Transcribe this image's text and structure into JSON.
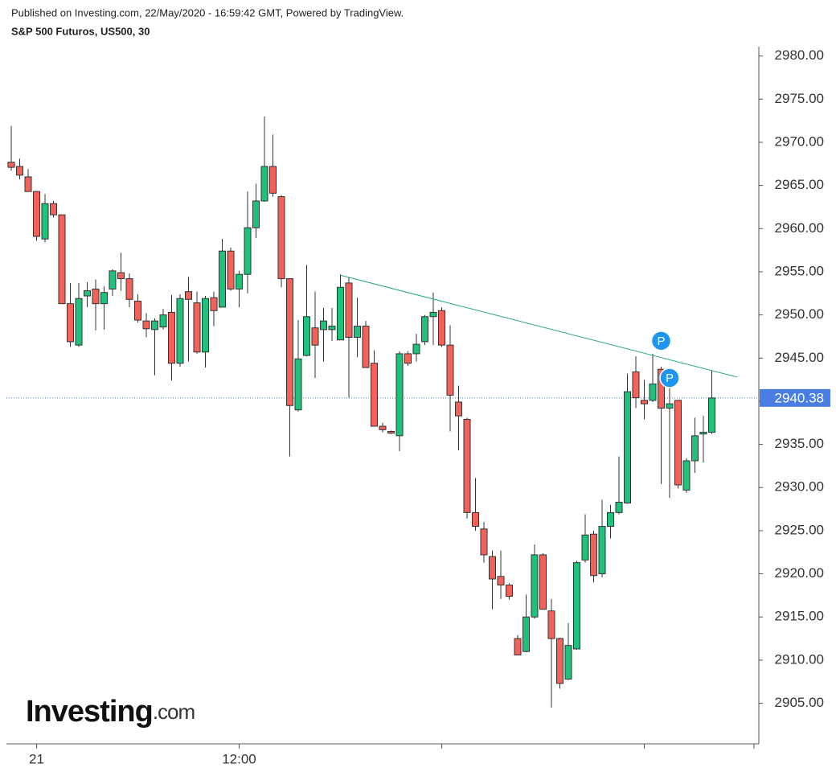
{
  "header": {
    "published": "Published on Investing.com, 22/May/2020 - 16:59:42 GMT, Powered by TradingView.",
    "symbol": "S&P 500 Futuros, US500, 30"
  },
  "logo": {
    "name": "Investing",
    "suffix": ".com"
  },
  "chart_data": {
    "type": "candlestick",
    "categories": [
      null,
      null,
      null,
      "21",
      null,
      null,
      null,
      null,
      null,
      null,
      null,
      null,
      null,
      null,
      null,
      null,
      null,
      null,
      null,
      null,
      null,
      null,
      null,
      null,
      null,
      null,
      null,
      "12:00",
      null,
      null,
      null,
      null,
      null,
      null,
      null,
      null,
      null,
      null,
      null,
      null,
      null,
      null,
      null,
      null,
      null,
      null,
      null,
      null,
      null,
      null,
      null,
      null,
      null,
      null,
      null,
      null,
      null,
      null,
      null,
      null,
      null,
      null,
      null,
      null,
      null,
      null,
      null,
      null,
      null,
      null,
      null,
      null,
      null,
      null,
      null,
      null,
      null,
      null,
      null,
      null,
      null,
      null,
      null,
      null
    ],
    "open": [
      2967.7,
      2967.2,
      2966.0,
      2964.3,
      2958.8,
      2962.9,
      2961.6,
      2951.3,
      2946.5,
      2952.2,
      2953.0,
      2951.3,
      2953.0,
      2954.9,
      2954.2,
      2951.6,
      2949.3,
      2948.3,
      2948.6,
      2950.3,
      2944.4,
      2952.7,
      2951.4,
      2945.7,
      2952.0,
      2950.9,
      2957.4,
      2953.0,
      2954.7,
      2960.1,
      2963.2,
      2967.2,
      2963.7,
      2954.2,
      2939.0,
      2945.3,
      2948.5,
      2948.3,
      2948.3,
      2947.1,
      2953.7,
      2947.4,
      2948.7,
      2944.4,
      2937.1,
      2936.5,
      2936.0,
      2945.5,
      2945.5,
      2946.9,
      2949.8,
      2950.5,
      2946.5,
      2939.9,
      2937.9,
      2927.1,
      2925.2,
      2922.0,
      2919.7,
      2918.7,
      2912.5,
      2911.0,
      2915.0,
      2922.2,
      2915.7,
      2912.5,
      2907.8,
      2911.3,
      2921.6,
      2924.6,
      2920.0,
      2925.5,
      2927.1,
      2928.2,
      2943.4,
      2940.1,
      2940.1,
      2943.7,
      2939.2,
      2940.1,
      2929.7,
      2933.1,
      2936.2,
      2936.4
    ],
    "high": [
      2971.9,
      2968.1,
      2966.9,
      2964.3,
      2964.0,
      2963.2,
      2961.6,
      2953.7,
      2953.7,
      2953.8,
      2954.1,
      2953.3,
      2955.3,
      2957.2,
      2954.8,
      2952.4,
      2950.2,
      2949.6,
      2950.7,
      2952.3,
      2952.4,
      2954.4,
      2952.7,
      2952.2,
      2952.7,
      2958.8,
      2957.8,
      2955.1,
      2964.3,
      2965.2,
      2973.0,
      2970.9,
      2963.9,
      2954.2,
      2949.4,
      2955.8,
      2952.7,
      2950.8,
      2950.8,
      2954.7,
      2954.4,
      2952.0,
      2949.3,
      2945.9,
      2937.5,
      2936.6,
      2945.8,
      2945.8,
      2947.8,
      2950.0,
      2952.6,
      2950.9,
      2948.8,
      2941.8,
      2938.1,
      2931.1,
      2926.0,
      2922.7,
      2922.7,
      2918.9,
      2912.9,
      2917.6,
      2923.4,
      2922.4,
      2917.1,
      2912.6,
      2914.3,
      2921.5,
      2926.9,
      2925.0,
      2928.6,
      2928.0,
      2933.6,
      2943.2,
      2945.2,
      2942.5,
      2945.5,
      2944.0,
      2941.8,
      2940.1,
      2933.4,
      2938.1,
      2938.3,
      2943.6
    ],
    "low": [
      2966.7,
      2965.7,
      2964.3,
      2958.6,
      2958.4,
      2961.3,
      2951.3,
      2946.3,
      2946.3,
      2950.9,
      2948.2,
      2948.3,
      2952.2,
      2952.8,
      2950.9,
      2949.1,
      2947.4,
      2943.0,
      2948.3,
      2942.4,
      2944.0,
      2944.6,
      2945.5,
      2943.9,
      2948.7,
      2950.9,
      2952.8,
      2950.9,
      2952.5,
      2958.9,
      2963.1,
      2963.7,
      2953.2,
      2933.6,
      2938.8,
      2945.2,
      2942.7,
      2944.6,
      2947.0,
      2947.1,
      2940.4,
      2945.1,
      2943.9,
      2937.1,
      2936.4,
      2936.2,
      2934.2,
      2944.1,
      2944.6,
      2946.5,
      2946.5,
      2946.3,
      2936.5,
      2934.3,
      2926.4,
      2925.0,
      2921.3,
      2915.9,
      2917.1,
      2917.0,
      2910.6,
      2910.9,
      2914.8,
      2915.9,
      2904.5,
      2906.7,
      2907.7,
      2911.2,
      2921.3,
      2919.0,
      2919.6,
      2924.1,
      2926.9,
      2928.1,
      2939.2,
      2937.9,
      2939.9,
      2930.4,
      2928.8,
      2929.9,
      2929.4,
      2931.7,
      2932.9,
      2936.2
    ],
    "close": [
      2967.1,
      2966.2,
      2964.3,
      2959.1,
      2962.9,
      2961.6,
      2951.3,
      2946.9,
      2951.9,
      2952.8,
      2951.3,
      2952.6,
      2955.1,
      2954.2,
      2951.8,
      2949.4,
      2948.4,
      2949.3,
      2950.0,
      2944.4,
      2951.9,
      2951.8,
      2945.7,
      2951.9,
      2950.5,
      2957.4,
      2953.0,
      2954.7,
      2960.1,
      2963.2,
      2967.2,
      2964.1,
      2954.2,
      2939.5,
      2944.9,
      2949.8,
      2946.5,
      2949.3,
      2948.7,
      2953.2,
      2947.4,
      2948.7,
      2943.9,
      2937.1,
      2936.7,
      2936.3,
      2945.5,
      2944.4,
      2946.6,
      2949.8,
      2950.3,
      2946.5,
      2940.7,
      2938.3,
      2927.1,
      2925.5,
      2922.2,
      2919.4,
      2918.7,
      2917.4,
      2910.6,
      2915.0,
      2922.2,
      2915.9,
      2912.5,
      2907.3,
      2911.7,
      2921.3,
      2924.5,
      2919.8,
      2925.5,
      2927.1,
      2928.3,
      2941.1,
      2940.4,
      2939.7,
      2942.0,
      2939.2,
      2939.7,
      2930.3,
      2933.1,
      2936.0,
      2936.4,
      2940.38
    ],
    "up_color": "#1ec27a",
    "down_color": "#f2625a",
    "ylim": [
      2900.3,
      2980.9
    ],
    "yticks": [
      {
        "value": 2905,
        "label": "2905.00"
      },
      {
        "value": 2910,
        "label": "2910.00"
      },
      {
        "value": 2915,
        "label": "2915.00"
      },
      {
        "value": 2920,
        "label": "2920.00"
      },
      {
        "value": 2925,
        "label": "2925.00"
      },
      {
        "value": 2930,
        "label": "2930.00"
      },
      {
        "value": 2935,
        "label": "2935.00"
      },
      {
        "value": 2940,
        "label": "2940.00"
      },
      {
        "value": 2945,
        "label": "2945.00"
      },
      {
        "value": 2950,
        "label": "2950.00"
      },
      {
        "value": 2955,
        "label": "2955.00"
      },
      {
        "value": 2960,
        "label": "2960.00"
      },
      {
        "value": 2965,
        "label": "2965.00"
      },
      {
        "value": 2970,
        "label": "2970.00"
      },
      {
        "value": 2975,
        "label": "2975.00"
      },
      {
        "value": 2980,
        "label": "2980.00"
      }
    ],
    "last_price": 2940.38,
    "last_price_color": "#4a7de2",
    "trendline": {
      "x": [
        39,
        86
      ],
      "values": [
        2954.6,
        2942.8
      ],
      "color": "#26a688"
    },
    "markers": [
      {
        "label": "P",
        "x": 77,
        "value": 2947.0
      },
      {
        "label": "P",
        "x": 78,
        "value": 2942.7
      }
    ],
    "marker_color": "#1e96f0"
  }
}
